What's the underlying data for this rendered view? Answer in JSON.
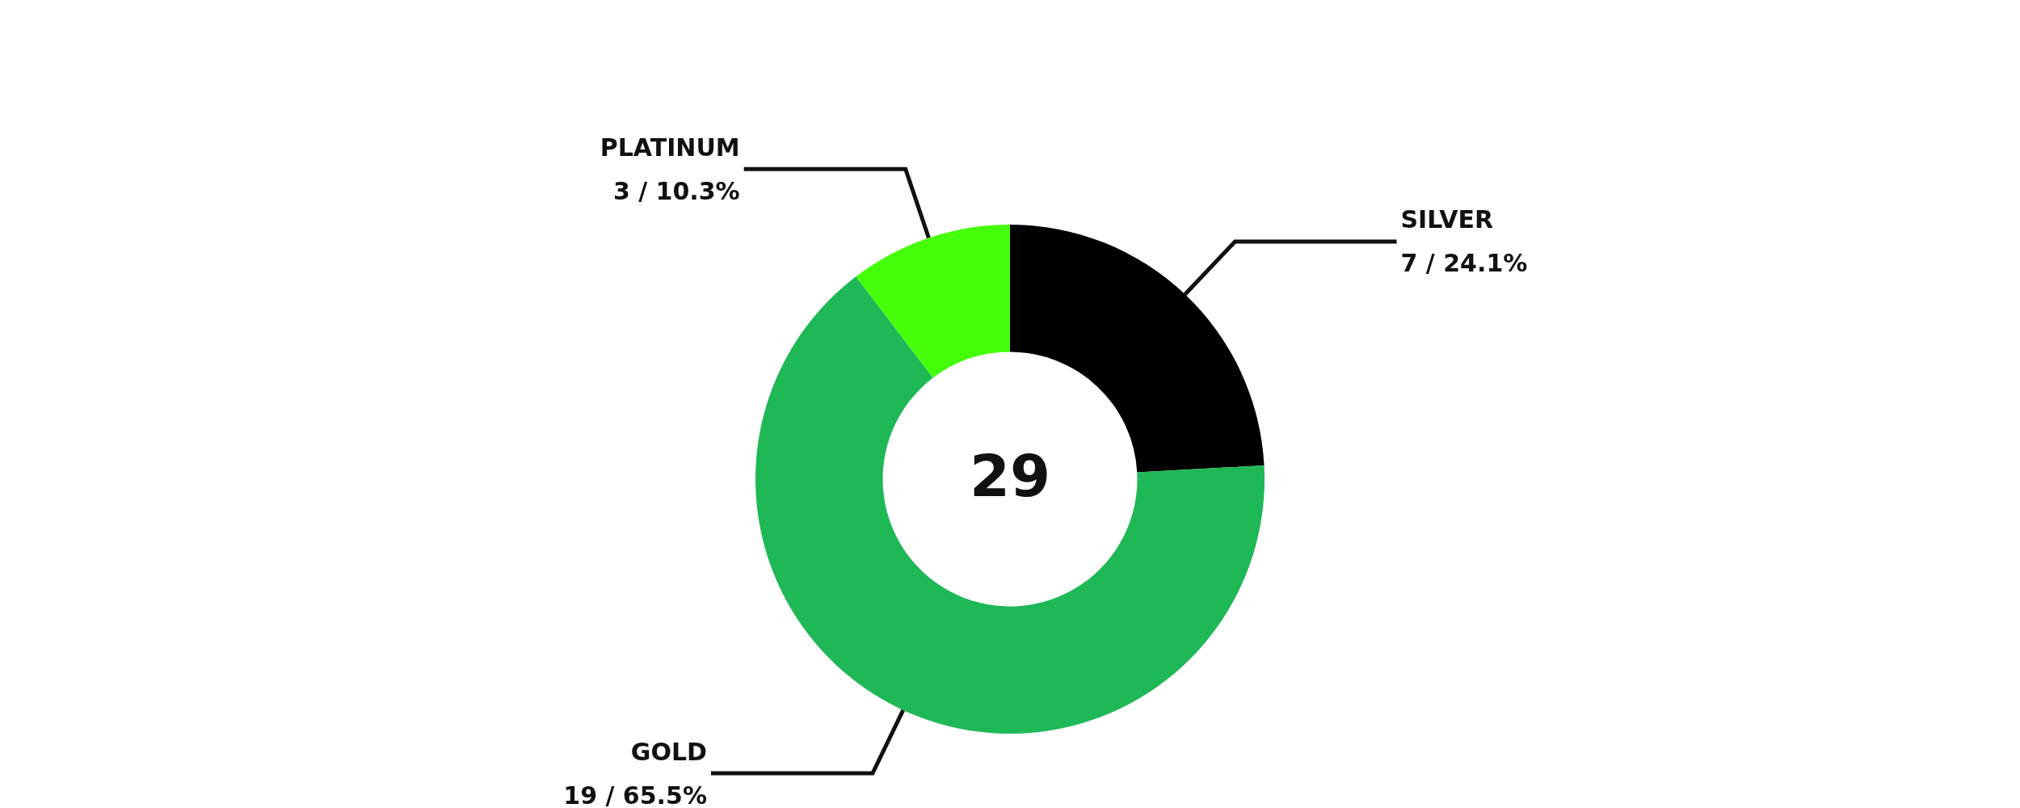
{
  "chart_data": {
    "type": "donut",
    "categories": [
      "SILVER",
      "GOLD",
      "PLATINUM"
    ],
    "values": [
      7,
      19,
      3
    ],
    "colors": [
      "#000000",
      "#1fb856",
      "#45ff0a"
    ],
    "value_labels": [
      "7 / 24.1%",
      "19 / 65.5%",
      "3 / 10.3%"
    ],
    "annotations": [
      "29"
    ],
    "legend": false
  }
}
